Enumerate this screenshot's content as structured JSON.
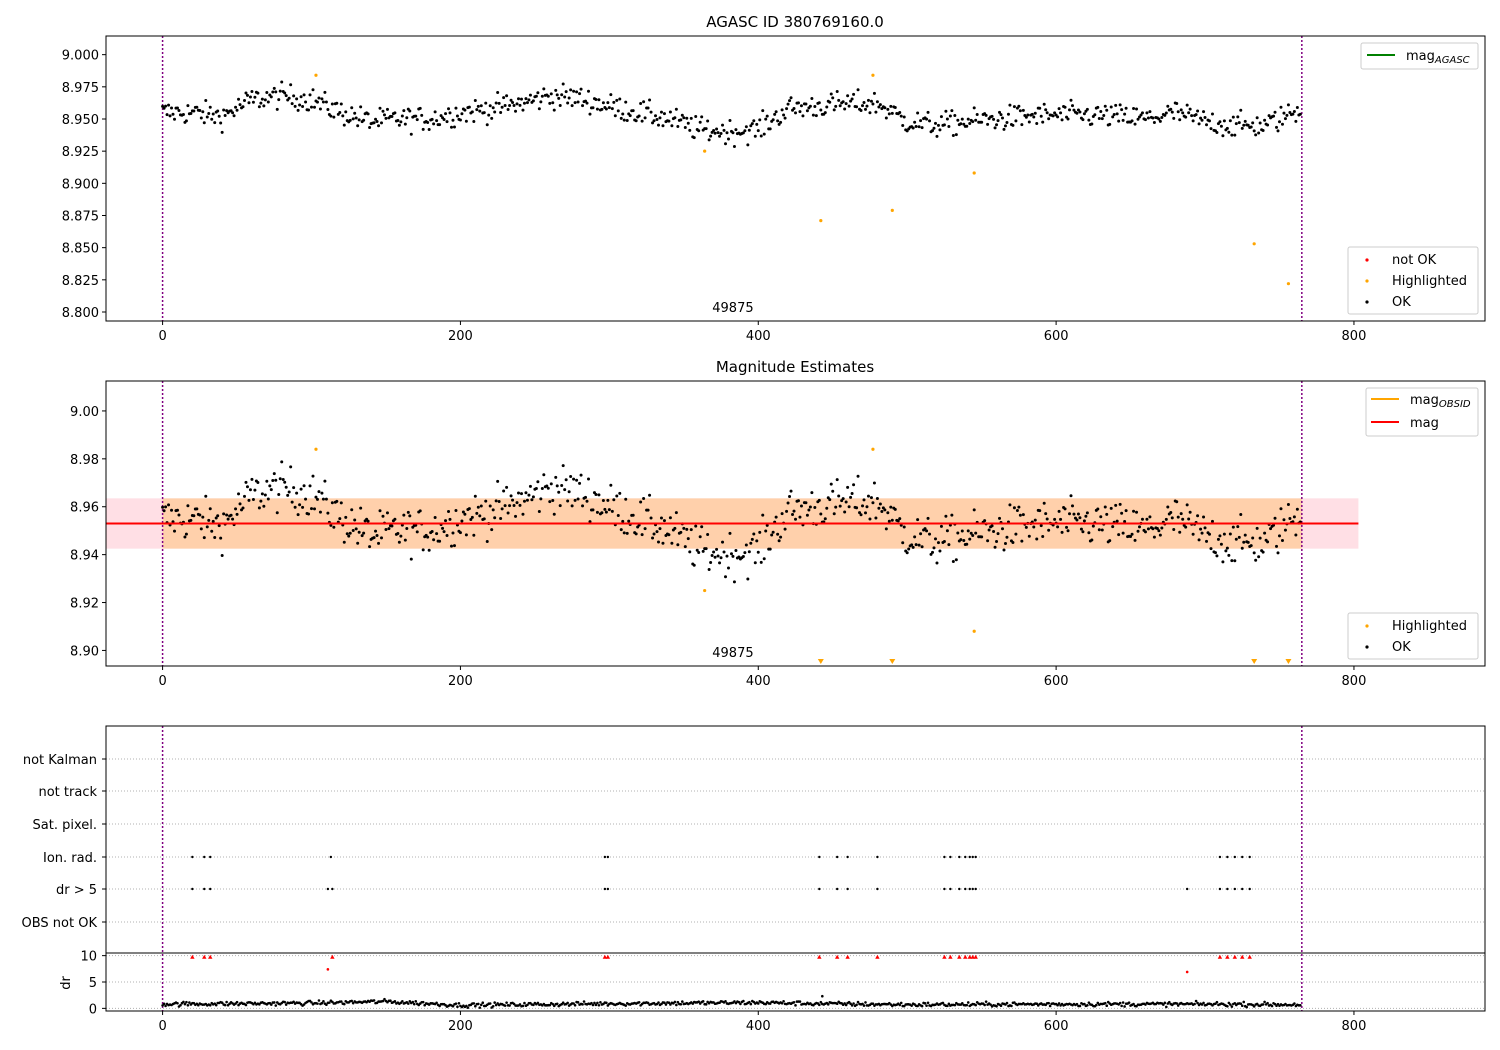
{
  "chart_data": [
    {
      "type": "scatter",
      "title": "AGASC ID 380769160.0",
      "xlim": [
        -38,
        888
      ],
      "ylim": [
        8.793,
        9.0145
      ],
      "xticks": [
        "0",
        "200",
        "400",
        "600",
        "800"
      ],
      "yticks": [
        "8.800",
        "8.825",
        "8.850",
        "8.875",
        "8.900",
        "8.925",
        "8.950",
        "8.975",
        "9.000"
      ],
      "obsid_annotation": "49875",
      "obsid_boundaries": [
        0,
        765
      ],
      "legend_upper": [
        {
          "label": "mag",
          "sub": "AGASC",
          "color": "#008000"
        }
      ],
      "legend_lower": [
        {
          "label": "not OK",
          "color": "#ff0000"
        },
        {
          "label": "Highlighted",
          "color": "#ffa500"
        },
        {
          "label": "OK",
          "color": "#000000"
        }
      ],
      "ok_trend": {
        "x": [
          0,
          20,
          40,
          60,
          80,
          100,
          120,
          140,
          160,
          180,
          200,
          220,
          240,
          260,
          280,
          300,
          320,
          340,
          360,
          380,
          400,
          420,
          440,
          460,
          480,
          500,
          520,
          540,
          560,
          580,
          600,
          620,
          640,
          660,
          680,
          700,
          720,
          740,
          765
        ],
        "y": [
          8.955,
          8.955,
          8.952,
          8.965,
          8.968,
          8.965,
          8.955,
          8.948,
          8.95,
          8.95,
          8.955,
          8.958,
          8.962,
          8.968,
          8.966,
          8.96,
          8.955,
          8.95,
          8.942,
          8.94,
          8.942,
          8.958,
          8.96,
          8.962,
          8.962,
          8.948,
          8.945,
          8.948,
          8.95,
          8.952,
          8.953,
          8.953,
          8.952,
          8.95,
          8.955,
          8.948,
          8.945,
          8.945,
          8.958
        ],
        "scatter": 0.0085,
        "n": 765
      },
      "highlighted": [
        {
          "x": 103,
          "y": 8.984
        },
        {
          "x": 364,
          "y": 8.925
        },
        {
          "x": 442,
          "y": 8.871
        },
        {
          "x": 477,
          "y": 8.984
        },
        {
          "x": 490,
          "y": 8.879
        },
        {
          "x": 545,
          "y": 8.908
        },
        {
          "x": 733,
          "y": 8.853
        },
        {
          "x": 756,
          "y": 8.822
        }
      ]
    },
    {
      "type": "scatter",
      "title": "Magnitude Estimates",
      "xlim": [
        -38,
        888
      ],
      "ylim": [
        8.8935,
        9.0125
      ],
      "xticks": [
        "0",
        "200",
        "400",
        "600",
        "800"
      ],
      "yticks": [
        "8.90",
        "8.92",
        "8.94",
        "8.96",
        "8.98",
        "9.00"
      ],
      "obsid_annotation": "49875",
      "obsid_boundaries": [
        0,
        765
      ],
      "mean_mag": 8.953,
      "band_range": [
        8.9425,
        8.9635
      ],
      "band_x": [
        -38,
        803
      ],
      "band_obsid_x": [
        0,
        765
      ],
      "legend_upper": [
        {
          "label": "mag",
          "sub": "OBSID",
          "color": "#ffa500"
        },
        {
          "label": "mag",
          "sub": "",
          "color": "#ff0000"
        }
      ],
      "legend_lower": [
        {
          "label": "Highlighted",
          "color": "#ffa500"
        },
        {
          "label": "OK",
          "color": "#000000"
        }
      ],
      "highlighted": [
        {
          "x": 103,
          "y": 8.984
        },
        {
          "x": 364,
          "y": 8.925
        },
        {
          "x": 477,
          "y": 8.984
        },
        {
          "x": 545,
          "y": 8.908
        }
      ],
      "clipped_markers_x": [
        442,
        490,
        733,
        756
      ]
    },
    {
      "type": "scatter",
      "xlim": [
        -38,
        888
      ],
      "xticks": [
        "0",
        "200",
        "400",
        "600",
        "800"
      ],
      "flag_labels": [
        "not Kalman",
        "not track",
        "Sat. pixel.",
        "Ion. rad.",
        "dr > 5",
        "OBS not OK"
      ],
      "flag_points": {
        "Ion. rad.": [
          20,
          28,
          32,
          113,
          297,
          299,
          441,
          453,
          460,
          480,
          525,
          529,
          535,
          539,
          542,
          544,
          546,
          710,
          715,
          720,
          725,
          730
        ],
        "dr > 5": [
          20,
          28,
          32,
          111,
          114,
          297,
          299,
          441,
          453,
          460,
          480,
          525,
          529,
          535,
          539,
          542,
          544,
          546,
          688,
          710,
          715,
          720,
          725,
          730
        ]
      },
      "dr_ylabel": "dr",
      "dr_yticks": [
        "0",
        "5",
        "10"
      ],
      "dr_ylim": [
        -0.5,
        10.5
      ],
      "dr_trend": {
        "x": [
          0,
          100,
          150,
          200,
          300,
          400,
          440,
          500,
          600,
          700,
          765
        ],
        "y": [
          0.8,
          1.0,
          1.3,
          0.6,
          0.9,
          1.1,
          0.9,
          0.7,
          0.8,
          0.8,
          0.7
        ]
      },
      "dr_high_red": [
        20,
        28,
        32,
        114,
        297,
        299,
        441,
        453,
        460,
        480,
        525,
        529,
        535,
        539,
        542,
        544,
        546,
        710,
        715,
        720,
        725,
        730
      ],
      "dr_mid_red": [
        {
          "x": 111,
          "y": 7.4
        },
        {
          "x": 688,
          "y": 6.9
        }
      ],
      "dr_outlier": {
        "x": 443,
        "y": 2.3
      }
    }
  ]
}
